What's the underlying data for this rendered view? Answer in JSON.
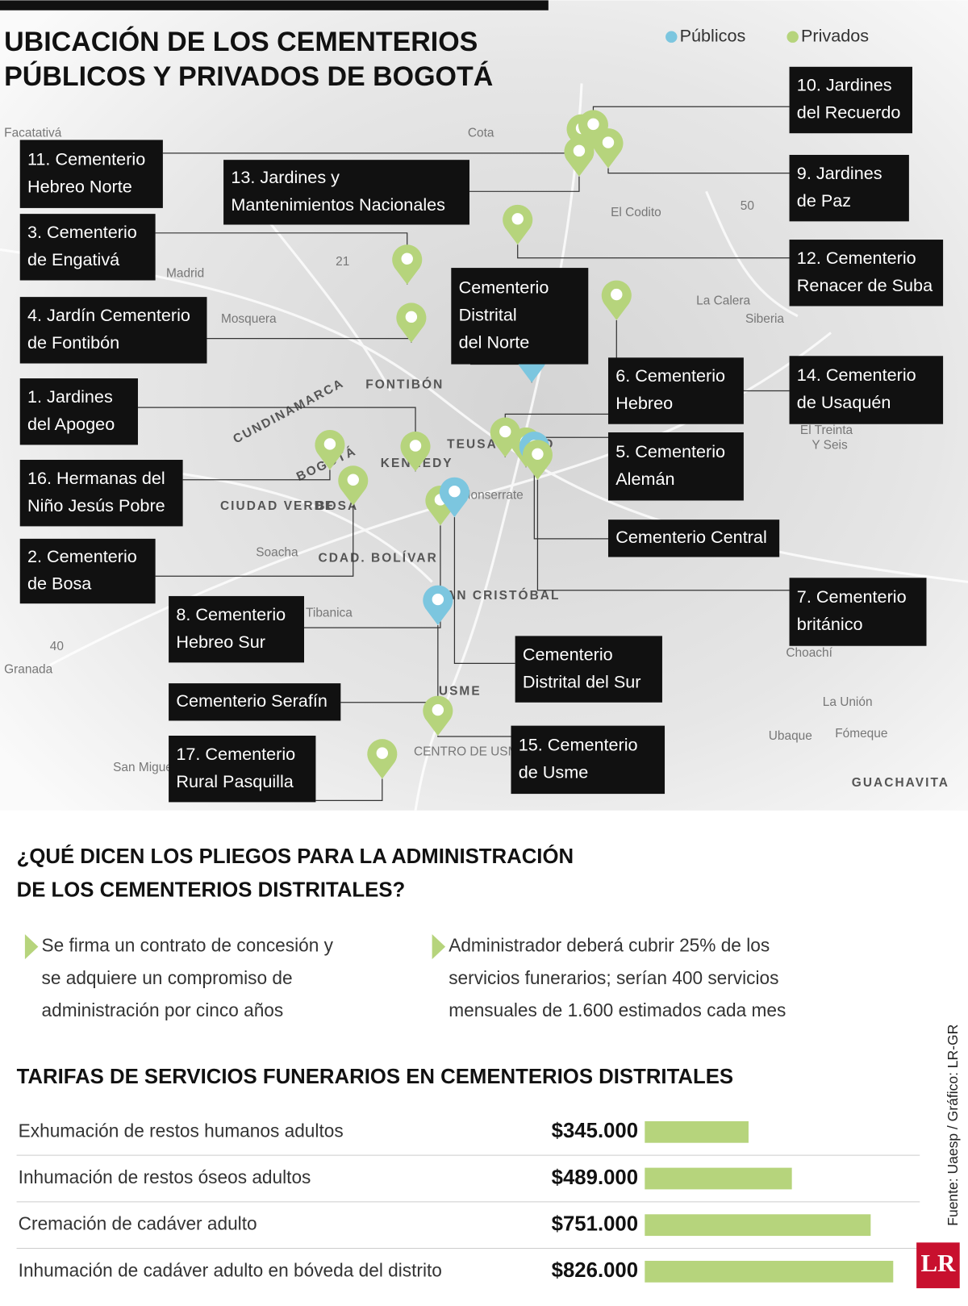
{
  "header": {
    "title_lines": [
      "UBICACIÓN DE LOS CEMENTERIOS",
      "PÚBLICOS Y PRIVADOS DE BOGOTÁ"
    ],
    "legend": [
      {
        "label": "Públicos",
        "color": "#7cc6df"
      },
      {
        "label": "Privados",
        "color": "#b6d47c"
      }
    ]
  },
  "map": {
    "places": [
      "Facatativá",
      "Cota",
      "El Codito",
      "Madrid",
      "Mosquera",
      "La Calera",
      "Siberia",
      "FONTIBÓN",
      "CUNDINAMARCA",
      "BOGOTÁ",
      "TEUSAQUILLO",
      "KENNEDY",
      "Monserrate",
      "CIUDAD VERDE",
      "BOSA",
      "Soacha",
      "CDAD. BOLÍVAR",
      "SAN CRISTÓBAL",
      "Tibanica",
      "USME",
      "El Treinta",
      "Y Seis",
      "Choachí",
      "La Unión",
      "Ubaque",
      "Fómeque",
      "CENTRO DE USME",
      "San Miguel",
      "Granada",
      "GUACHAVITA",
      "50",
      "21",
      "40"
    ],
    "cemeteries": [
      {
        "lines": [
          "11. Cementerio",
          "Hebreo Norte"
        ],
        "color": "#b6d47c"
      },
      {
        "lines": [
          "13. Jardines y",
          "Mantenimientos Nacionales"
        ],
        "color": "#b6d47c"
      },
      {
        "lines": [
          "3. Cementerio",
          "de Engativá"
        ],
        "color": "#b6d47c"
      },
      {
        "lines": [
          "4. Jardín Cementerio",
          "de Fontibón"
        ],
        "color": "#b6d47c"
      },
      {
        "lines": [
          "1. Jardines",
          "del Apogeo"
        ],
        "color": "#b6d47c"
      },
      {
        "lines": [
          "16. Hermanas del",
          "Niño Jesús Pobre"
        ],
        "color": "#b6d47c"
      },
      {
        "lines": [
          "2. Cementerio",
          "de Bosa"
        ],
        "color": "#b6d47c"
      },
      {
        "lines": [
          "8. Cementerio",
          "Hebreo Sur"
        ],
        "color": "#b6d47c"
      },
      {
        "lines": [
          "Cementerio Serafín"
        ],
        "color": "#7cc6df"
      },
      {
        "lines": [
          "17. Cementerio",
          "Rural Pasquilla"
        ],
        "color": "#b6d47c"
      },
      {
        "lines": [
          "Cementerio",
          "Distrital",
          "del Norte"
        ],
        "color": "#7cc6df"
      },
      {
        "lines": [
          "10. Jardines",
          "del Recuerdo"
        ],
        "color": "#b6d47c"
      },
      {
        "lines": [
          "9. Jardines",
          "de Paz"
        ],
        "color": "#b6d47c"
      },
      {
        "lines": [
          "12. Cementerio",
          "Renacer de Suba"
        ],
        "color": "#b6d47c"
      },
      {
        "lines": [
          "6. Cementerio",
          "Hebreo"
        ],
        "color": "#b6d47c"
      },
      {
        "lines": [
          "14. Cementerio",
          "de Usaquén"
        ],
        "color": "#b6d47c"
      },
      {
        "lines": [
          "5. Cementerio",
          "Alemán"
        ],
        "color": "#b6d47c"
      },
      {
        "lines": [
          "Cementerio Central"
        ],
        "color": "#7cc6df"
      },
      {
        "lines": [
          "7. Cementerio",
          "británico"
        ],
        "color": "#b6d47c"
      },
      {
        "lines": [
          "Cementerio",
          "Distrital del Sur"
        ],
        "color": "#7cc6df"
      },
      {
        "lines": [
          "15. Cementerio",
          "de Usme"
        ],
        "color": "#b6d47c"
      }
    ]
  },
  "pliegos": {
    "heading_lines": [
      "¿QUÉ DICEN LOS PLIEGOS PARA LA ADMINISTRACIÓN",
      "DE LOS CEMENTERIOS DISTRITALES?"
    ],
    "bullets": [
      [
        "Se firma un contrato de concesión y",
        "se adquiere un compromiso de",
        "administración por cinco años"
      ],
      [
        "Administrador deberá cubrir 25% de los",
        "servicios funerarios; serían 400 servicios",
        "mensuales de 1.600 estimados cada mes"
      ]
    ]
  },
  "chart_data": {
    "type": "hbar",
    "title": "TARIFAS DE SERVICIOS FUNERARIOS EN CEMENTERIOS DISTRITALES",
    "categories": [
      "Exhumación de restos humanos adultos",
      "Inhumación de restos óseos adultos",
      "Cremación de cadáver adulto",
      "Inhumación de cadáver adulto en bóveda del distrito"
    ],
    "values": [
      345000,
      489000,
      751000,
      826000
    ],
    "value_labels": [
      "$345.000",
      "$489.000",
      "$751.000",
      "$826.000"
    ],
    "color": "#b6d47c"
  },
  "source": "Fuente: Uaesp / Gráfico: LR-GR",
  "logo": "LR"
}
